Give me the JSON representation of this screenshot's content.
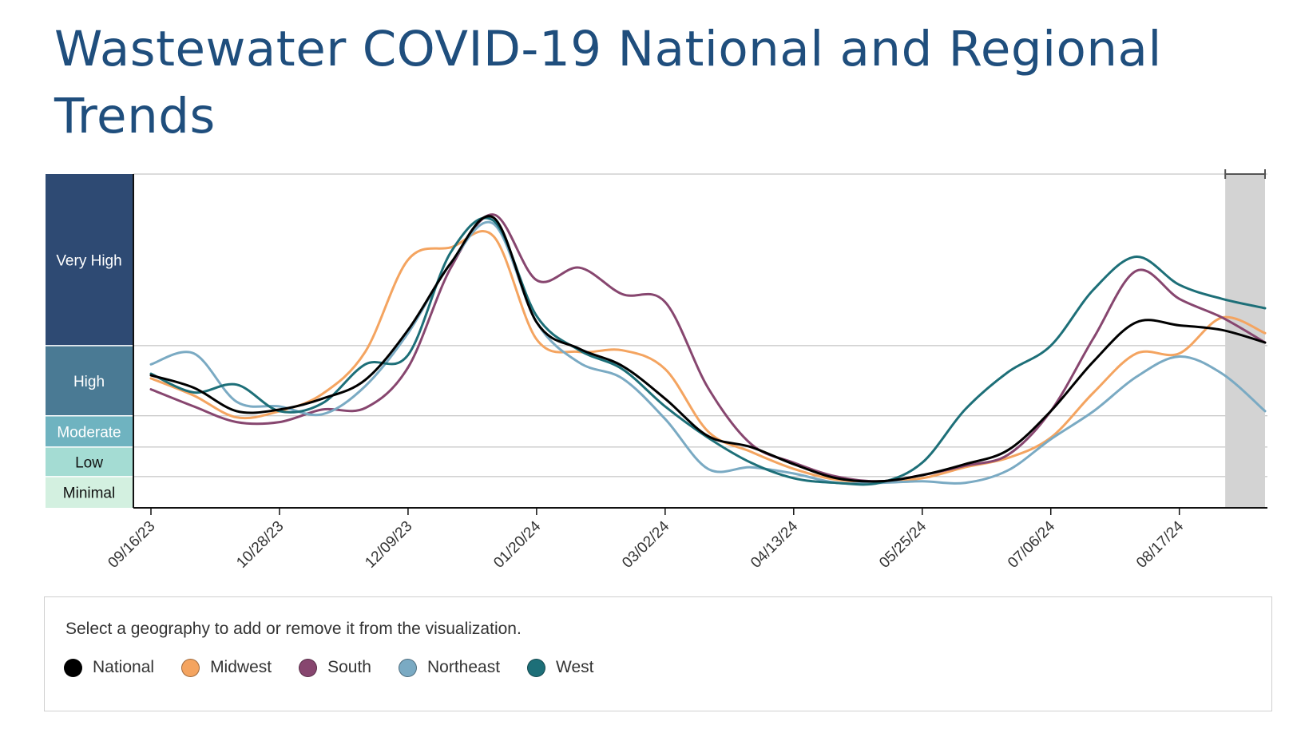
{
  "page": {
    "title": "Wastewater COVID-19 National and Regional Trends"
  },
  "legend": {
    "hint": "Select a geography to add or remove it from the visualization.",
    "items": [
      {
        "label": "National",
        "color": "#000000"
      },
      {
        "label": "Midwest",
        "color": "#f4a460"
      },
      {
        "label": "South",
        "color": "#87466f"
      },
      {
        "label": "Northeast",
        "color": "#7aaac3"
      },
      {
        "label": "West",
        "color": "#1d6f78"
      }
    ]
  },
  "chart_data": {
    "type": "line",
    "title": "Wastewater COVID-19 National and Regional Trends",
    "xlabel": "",
    "ylabel": "",
    "x_tick_labels": [
      "09/16/23",
      "10/28/23",
      "12/09/23",
      "01/20/24",
      "03/02/24",
      "04/13/24",
      "05/25/24",
      "07/06/24",
      "08/17/24"
    ],
    "levels": [
      {
        "label": "Very High",
        "from": 9.0,
        "to": 20.0,
        "color": "#2e4a73",
        "text_color": "#ffffff"
      },
      {
        "label": "High",
        "from": 4.5,
        "to": 9.0,
        "color": "#4a7a94",
        "text_color": "#ffffff"
      },
      {
        "label": "Moderate",
        "from": 2.5,
        "to": 4.5,
        "color": "#6fb3c0",
        "text_color": "#ffffff"
      },
      {
        "label": "Low",
        "from": 0.6,
        "to": 2.5,
        "color": "#a4dcd3",
        "text_color": "#111111"
      },
      {
        "label": "Minimal",
        "from": -1.4,
        "to": 0.6,
        "color": "#d3f0e0",
        "text_color": "#111111"
      }
    ],
    "ylim": [
      -1.4,
      20.0
    ],
    "xlim": [
      "2023-09-16",
      "2024-09-14"
    ],
    "provisional_period": [
      "2024-09-01",
      "2024-09-14"
    ],
    "grid": "horizontal at level boundaries",
    "series": [
      {
        "name": "National",
        "color": "#000000",
        "points": [
          [
            "2023-09-16",
            7.1
          ],
          [
            "2023-09-30",
            6.3
          ],
          [
            "2023-10-14",
            4.8
          ],
          [
            "2023-10-28",
            4.9
          ],
          [
            "2023-11-11",
            5.6
          ],
          [
            "2023-11-25",
            6.8
          ],
          [
            "2023-12-09",
            10.0
          ],
          [
            "2023-12-23",
            14.3
          ],
          [
            "2024-01-06",
            17.2
          ],
          [
            "2024-01-20",
            10.5
          ],
          [
            "2024-02-03",
            8.8
          ],
          [
            "2024-02-17",
            7.7
          ],
          [
            "2024-03-02",
            5.6
          ],
          [
            "2024-03-16",
            3.2
          ],
          [
            "2024-03-30",
            2.5
          ],
          [
            "2024-04-13",
            1.4
          ],
          [
            "2024-04-27",
            0.5
          ],
          [
            "2024-05-11",
            0.3
          ],
          [
            "2024-05-25",
            0.7
          ],
          [
            "2024-06-08",
            1.4
          ],
          [
            "2024-06-22",
            2.3
          ],
          [
            "2024-07-06",
            4.8
          ],
          [
            "2024-07-20",
            8.0
          ],
          [
            "2024-08-03",
            10.5
          ],
          [
            "2024-08-17",
            10.3
          ],
          [
            "2024-08-31",
            10.0
          ],
          [
            "2024-09-14",
            9.2
          ]
        ]
      },
      {
        "name": "Midwest",
        "color": "#f4a460",
        "points": [
          [
            "2023-09-16",
            6.9
          ],
          [
            "2023-09-30",
            5.8
          ],
          [
            "2023-10-14",
            4.4
          ],
          [
            "2023-10-28",
            4.8
          ],
          [
            "2023-11-11",
            5.9
          ],
          [
            "2023-11-25",
            8.6
          ],
          [
            "2023-12-09",
            14.5
          ],
          [
            "2023-12-23",
            15.3
          ],
          [
            "2024-01-06",
            16.0
          ],
          [
            "2024-01-20",
            9.4
          ],
          [
            "2024-02-03",
            8.6
          ],
          [
            "2024-02-17",
            8.7
          ],
          [
            "2024-03-02",
            7.5
          ],
          [
            "2024-03-16",
            3.5
          ],
          [
            "2024-03-30",
            2.2
          ],
          [
            "2024-04-13",
            1.1
          ],
          [
            "2024-04-27",
            0.4
          ],
          [
            "2024-05-11",
            0.3
          ],
          [
            "2024-05-25",
            0.5
          ],
          [
            "2024-06-08",
            1.2
          ],
          [
            "2024-06-22",
            1.8
          ],
          [
            "2024-07-06",
            3.1
          ],
          [
            "2024-07-20",
            6.0
          ],
          [
            "2024-08-03",
            8.5
          ],
          [
            "2024-08-17",
            8.5
          ],
          [
            "2024-08-31",
            10.8
          ],
          [
            "2024-09-14",
            9.8
          ]
        ]
      },
      {
        "name": "South",
        "color": "#87466f",
        "points": [
          [
            "2023-09-16",
            6.2
          ],
          [
            "2023-09-30",
            5.1
          ],
          [
            "2023-10-14",
            4.1
          ],
          [
            "2023-10-28",
            4.1
          ],
          [
            "2023-11-11",
            4.9
          ],
          [
            "2023-11-25",
            5.0
          ],
          [
            "2023-12-09",
            7.6
          ],
          [
            "2023-12-23",
            14.0
          ],
          [
            "2024-01-06",
            17.4
          ],
          [
            "2024-01-20",
            13.2
          ],
          [
            "2024-02-03",
            14.0
          ],
          [
            "2024-02-17",
            12.3
          ],
          [
            "2024-03-02",
            11.8
          ],
          [
            "2024-03-16",
            6.3
          ],
          [
            "2024-03-30",
            2.7
          ],
          [
            "2024-04-13",
            1.5
          ],
          [
            "2024-04-27",
            0.6
          ],
          [
            "2024-05-11",
            0.3
          ],
          [
            "2024-05-25",
            0.7
          ],
          [
            "2024-06-08",
            1.3
          ],
          [
            "2024-06-22",
            2.0
          ],
          [
            "2024-07-06",
            4.8
          ],
          [
            "2024-07-20",
            9.5
          ],
          [
            "2024-08-03",
            13.8
          ],
          [
            "2024-08-17",
            12.0
          ],
          [
            "2024-08-31",
            10.8
          ],
          [
            "2024-09-14",
            9.2
          ]
        ]
      },
      {
        "name": "Northeast",
        "color": "#7aaac3",
        "points": [
          [
            "2023-09-16",
            7.8
          ],
          [
            "2023-09-30",
            8.5
          ],
          [
            "2023-10-14",
            5.4
          ],
          [
            "2023-10-28",
            5.1
          ],
          [
            "2023-11-11",
            4.6
          ],
          [
            "2023-11-25",
            6.4
          ],
          [
            "2023-12-09",
            9.8
          ],
          [
            "2023-12-23",
            14.3
          ],
          [
            "2024-01-06",
            16.8
          ],
          [
            "2024-01-20",
            10.5
          ],
          [
            "2024-02-03",
            7.9
          ],
          [
            "2024-02-17",
            6.9
          ],
          [
            "2024-03-02",
            4.3
          ],
          [
            "2024-03-16",
            1.1
          ],
          [
            "2024-03-30",
            1.2
          ],
          [
            "2024-04-13",
            0.8
          ],
          [
            "2024-04-27",
            0.2
          ],
          [
            "2024-05-11",
            0.2
          ],
          [
            "2024-05-25",
            0.3
          ],
          [
            "2024-06-08",
            0.2
          ],
          [
            "2024-06-22",
            1.0
          ],
          [
            "2024-07-06",
            3.0
          ],
          [
            "2024-07-20",
            4.8
          ],
          [
            "2024-08-03",
            7.0
          ],
          [
            "2024-08-17",
            8.3
          ],
          [
            "2024-08-31",
            7.2
          ],
          [
            "2024-09-14",
            4.8
          ]
        ]
      },
      {
        "name": "West",
        "color": "#1d6f78",
        "points": [
          [
            "2023-09-16",
            7.2
          ],
          [
            "2023-09-30",
            6.0
          ],
          [
            "2023-10-14",
            6.5
          ],
          [
            "2023-10-28",
            4.8
          ],
          [
            "2023-11-11",
            5.3
          ],
          [
            "2023-11-25",
            7.8
          ],
          [
            "2023-12-09",
            8.4
          ],
          [
            "2023-12-23",
            15.0
          ],
          [
            "2024-01-06",
            17.0
          ],
          [
            "2024-01-20",
            10.9
          ],
          [
            "2024-02-03",
            8.7
          ],
          [
            "2024-02-17",
            7.5
          ],
          [
            "2024-03-02",
            5.1
          ],
          [
            "2024-03-16",
            3.1
          ],
          [
            "2024-03-30",
            1.5
          ],
          [
            "2024-04-13",
            0.5
          ],
          [
            "2024-04-27",
            0.2
          ],
          [
            "2024-05-11",
            0.2
          ],
          [
            "2024-05-25",
            1.5
          ],
          [
            "2024-06-08",
            4.9
          ],
          [
            "2024-06-22",
            7.3
          ],
          [
            "2024-07-06",
            9.0
          ],
          [
            "2024-07-20",
            12.6
          ],
          [
            "2024-08-03",
            14.7
          ],
          [
            "2024-08-17",
            12.9
          ],
          [
            "2024-08-31",
            12.0
          ],
          [
            "2024-09-14",
            11.4
          ]
        ]
      }
    ]
  }
}
